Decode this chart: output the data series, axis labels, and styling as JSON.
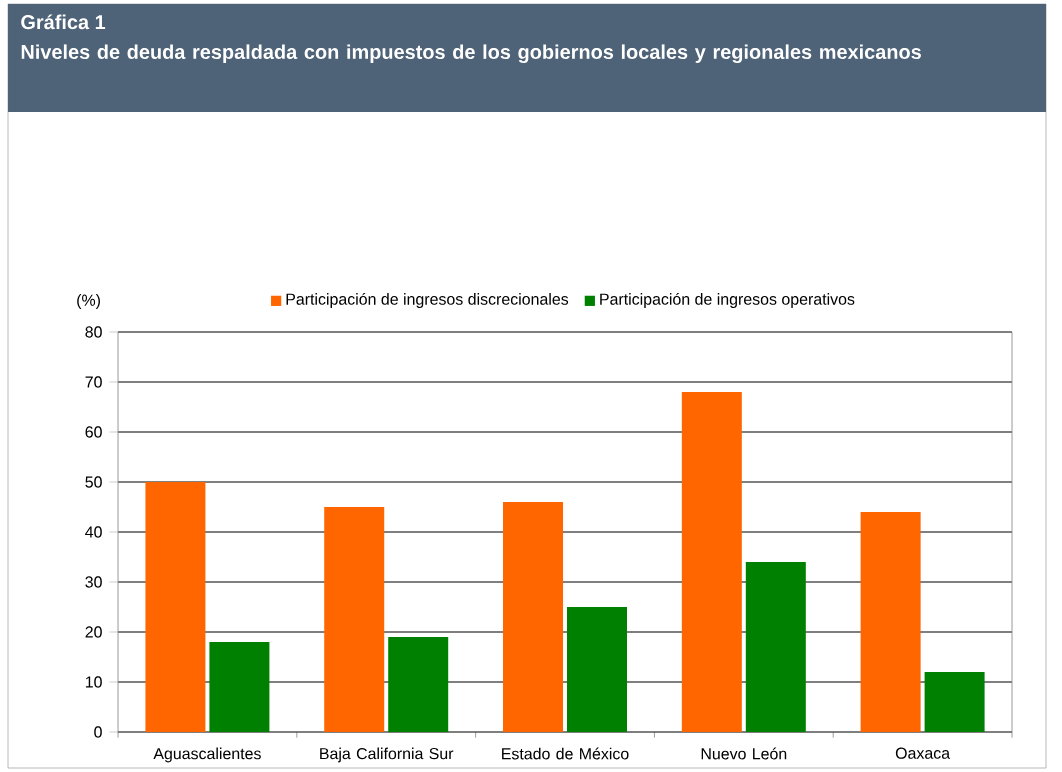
{
  "chart_data": {
    "type": "bar",
    "title": "Gráfica 1",
    "subtitle": "Niveles de deuda respaldada con impuestos de los gobiernos locales y regionales mexicanos",
    "ylabel": "(%)",
    "categories": [
      "Aguascalientes",
      "Baja California Sur",
      "Estado de México",
      "Nuevo León",
      "Oaxaca"
    ],
    "series": [
      {
        "name": "Participación de ingresos discrecionales",
        "color": "#ff6600",
        "values": [
          50,
          45,
          46,
          68,
          44
        ]
      },
      {
        "name": "Participación de ingresos operativos",
        "color": "#008000",
        "values": [
          18,
          19,
          25,
          34,
          12
        ]
      }
    ],
    "ylim": [
      0,
      80
    ],
    "yticks": [
      0,
      10,
      20,
      30,
      40,
      50,
      60,
      70,
      80
    ],
    "grid": "y",
    "legend": "top"
  }
}
